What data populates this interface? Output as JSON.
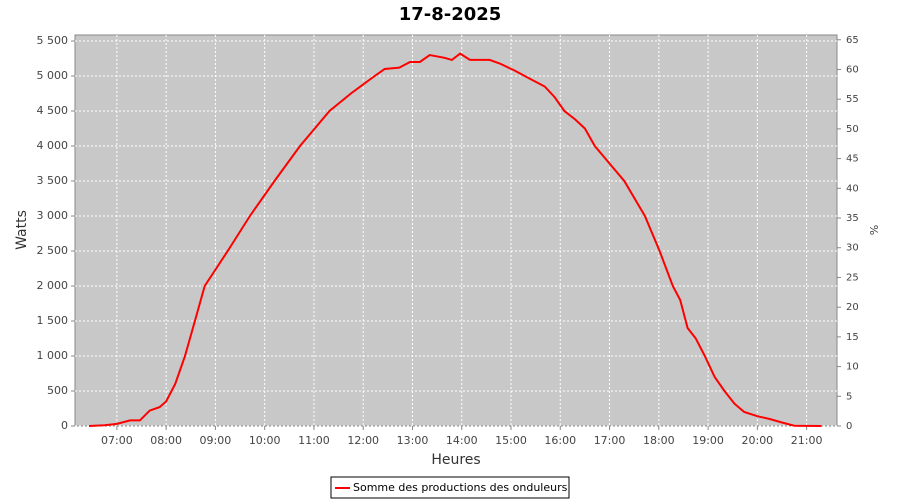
{
  "chart_data": {
    "type": "line",
    "title": "17-8-2025",
    "x_label": "Heures",
    "y_label": "Watts",
    "y2_label": "%",
    "xlim": [
      369,
      1297
    ],
    "xticks": [
      {
        "value": 420,
        "label": "07:00"
      },
      {
        "value": 480,
        "label": "08:00"
      },
      {
        "value": 540,
        "label": "09:00"
      },
      {
        "value": 600,
        "label": "10:00"
      },
      {
        "value": 660,
        "label": "11:00"
      },
      {
        "value": 720,
        "label": "12:00"
      },
      {
        "value": 780,
        "label": "13:00"
      },
      {
        "value": 840,
        "label": "14:00"
      },
      {
        "value": 900,
        "label": "15:00"
      },
      {
        "value": 960,
        "label": "16:00"
      },
      {
        "value": 1020,
        "label": "17:00"
      },
      {
        "value": 1080,
        "label": "18:00"
      },
      {
        "value": 1140,
        "label": "19:00"
      },
      {
        "value": 1200,
        "label": "20:00"
      },
      {
        "value": 1260,
        "label": "21:00"
      }
    ],
    "ylim": [
      0,
      5586
    ],
    "yticks": [
      0,
      500,
      {
        "value": 1000,
        "label": "1 000"
      },
      {
        "value": 1500,
        "label": "1 500"
      },
      {
        "value": 2000,
        "label": "2 000"
      },
      {
        "value": 2500,
        "label": "2 500"
      },
      {
        "value": 3000,
        "label": "3 000"
      },
      {
        "value": 3500,
        "label": "3 500"
      },
      {
        "value": 4000,
        "label": "4 000"
      },
      {
        "value": 4500,
        "label": "4 500"
      },
      {
        "value": 5000,
        "label": "5 000"
      },
      {
        "value": 5500,
        "label": "5 500"
      }
    ],
    "y2lim": [
      0,
      65.8
    ],
    "y2ticks": [
      0,
      5,
      10,
      15,
      20,
      25,
      30,
      35,
      40,
      45,
      50,
      55,
      60,
      65
    ],
    "grid": true,
    "legend": "bottom",
    "series": [
      {
        "name": "Somme des productions des onduleurs",
        "color": "#ff0000",
        "x": [
          386,
          405,
          420,
          436,
          448,
          460,
          472,
          480,
          491,
          503,
          515,
          527,
          555,
          582,
          612,
          643,
          679,
          705,
          720,
          734,
          746,
          764,
          777,
          789,
          801,
          819,
          828,
          838,
          850,
          874,
          886,
          904,
          923,
          941,
          953,
          965,
          978,
          990,
          1002,
          1020,
          1038,
          1063,
          1081,
          1097,
          1106,
          1115,
          1125,
          1136,
          1148,
          1160,
          1172,
          1184,
          1200,
          1215,
          1230,
          1245,
          1278
        ],
        "values": [
          0,
          10,
          30,
          80,
          80,
          220,
          270,
          350,
          600,
          1000,
          1500,
          2000,
          2500,
          3000,
          3500,
          4000,
          4500,
          4750,
          4880,
          5000,
          5100,
          5120,
          5200,
          5200,
          5300,
          5260,
          5230,
          5320,
          5230,
          5230,
          5180,
          5080,
          4960,
          4850,
          4700,
          4500,
          4380,
          4250,
          4000,
          3750,
          3500,
          3000,
          2500,
          2000,
          1800,
          1400,
          1250,
          1000,
          700,
          500,
          320,
          200,
          140,
          100,
          50,
          5,
          0
        ]
      }
    ]
  }
}
